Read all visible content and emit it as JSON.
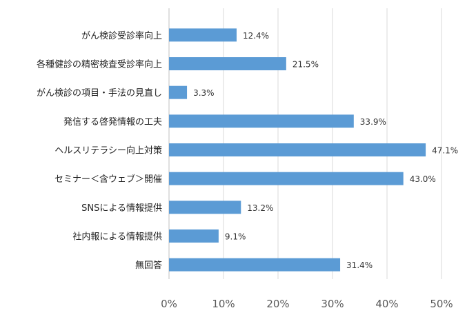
{
  "chart_data": {
    "type": "bar",
    "orientation": "horizontal",
    "categories": [
      "がん検診受診率向上",
      "各種健診の精密検査受診率向上",
      "がん検診の項目・手法の見直し",
      "発信する啓発情報の工夫",
      "ヘルスリテラシー向上対策",
      "セミナー＜含ウェブ＞開催",
      "SNSによる情報提供",
      "社内報による情報提供",
      "無回答"
    ],
    "values": [
      12.4,
      21.5,
      3.3,
      33.9,
      47.1,
      43.0,
      13.2,
      9.1,
      31.4
    ],
    "value_labels": [
      "12.4%",
      "21.5%",
      "3.3%",
      "33.9%",
      "47.1%",
      "43.0%",
      "13.2%",
      "9.1%",
      "31.4%"
    ],
    "x_ticks": [
      "0%",
      "10%",
      "20%",
      "30%",
      "40%",
      "50%"
    ],
    "xlim": [
      0,
      50
    ],
    "title": "",
    "xlabel": "",
    "ylabel": "",
    "grid": true,
    "legend": "none",
    "bar_color": "#5b9bd5"
  }
}
